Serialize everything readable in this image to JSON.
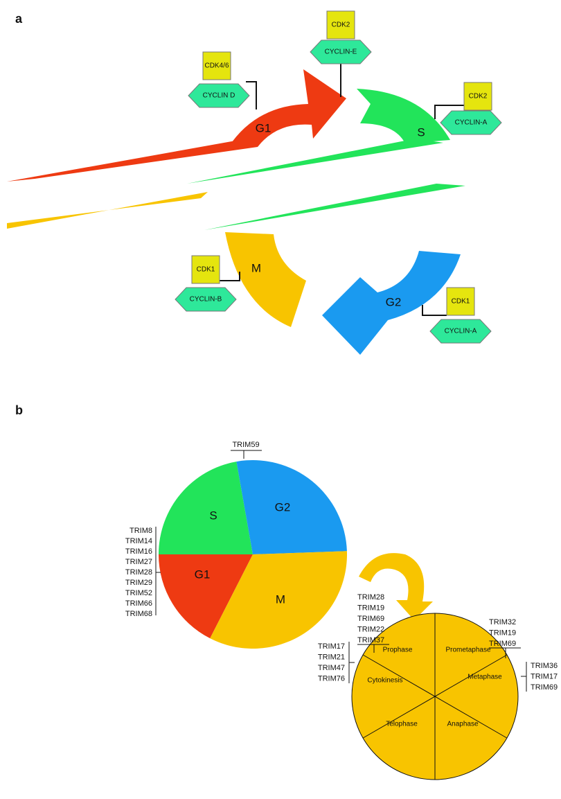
{
  "panel_a": {
    "label": "a",
    "phases": [
      "G1",
      "S",
      "G2",
      "M"
    ],
    "complexes": [
      {
        "kinase": "CDK4/6",
        "cyclin": "CYCLIN D"
      },
      {
        "kinase": "CDK2",
        "cyclin": "CYCLIN-E"
      },
      {
        "kinase": "CDK2",
        "cyclin": "CYCLIN-A"
      },
      {
        "kinase": "CDK1",
        "cyclin": "CYCLIN-B"
      },
      {
        "kinase": "CDK1",
        "cyclin": "CYCLIN-A"
      }
    ]
  },
  "panel_b": {
    "label": "b",
    "phases": [
      "S",
      "G2",
      "G1",
      "M"
    ],
    "g2_trims": [
      "TRIM59"
    ],
    "g1_trims": [
      "TRIM8",
      "TRIM14",
      "TRIM16",
      "TRIM27",
      "TRIM28",
      "TRIM29",
      "TRIM52",
      "TRIM66",
      "TRIM68"
    ],
    "subphases": [
      "Prophase",
      "Prometaphase",
      "Metaphase",
      "Anaphase",
      "Telophase",
      "Cytokinesis"
    ],
    "prophase_trims": [
      "TRIM28",
      "TRIM19",
      "TRIM69",
      "TRIM22",
      "TRIM37"
    ],
    "prometaphase_trims": [
      "TRIM32",
      "TRIM19",
      "TRIM69"
    ],
    "metaphase_trims": [
      "TRIM36",
      "TRIM17",
      "TRIM69"
    ],
    "cytokinesis_trims": [
      "TRIM17",
      "TRIM21",
      "TRIM47",
      "TRIM76"
    ]
  }
}
